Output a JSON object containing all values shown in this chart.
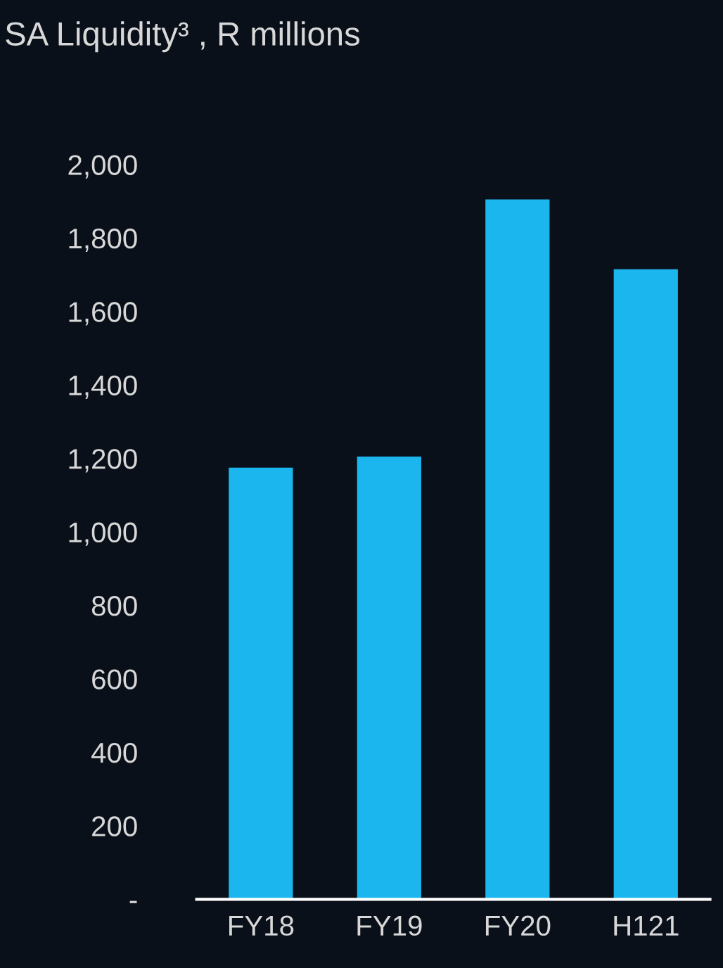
{
  "chart_data": {
    "type": "bar",
    "title": "SA Liquidity³ , R millions",
    "categories": [
      "FY18",
      "FY19",
      "FY20",
      "H121"
    ],
    "values": [
      1175,
      1205,
      1905,
      1715
    ],
    "color": "#1bb6ee",
    "ylim": [
      0,
      2000
    ],
    "yticks": [
      {
        "value": 0,
        "label": "-"
      },
      200,
      400,
      600,
      800,
      {
        "value": 1000,
        "label": "1,000"
      },
      {
        "value": 1200,
        "label": "1,200"
      },
      {
        "value": 1400,
        "label": "1,400"
      },
      {
        "value": 1600,
        "label": "1,600"
      },
      {
        "value": 1800,
        "label": "1,800"
      },
      {
        "value": 2000,
        "label": "2,000"
      }
    ],
    "grid": false
  }
}
